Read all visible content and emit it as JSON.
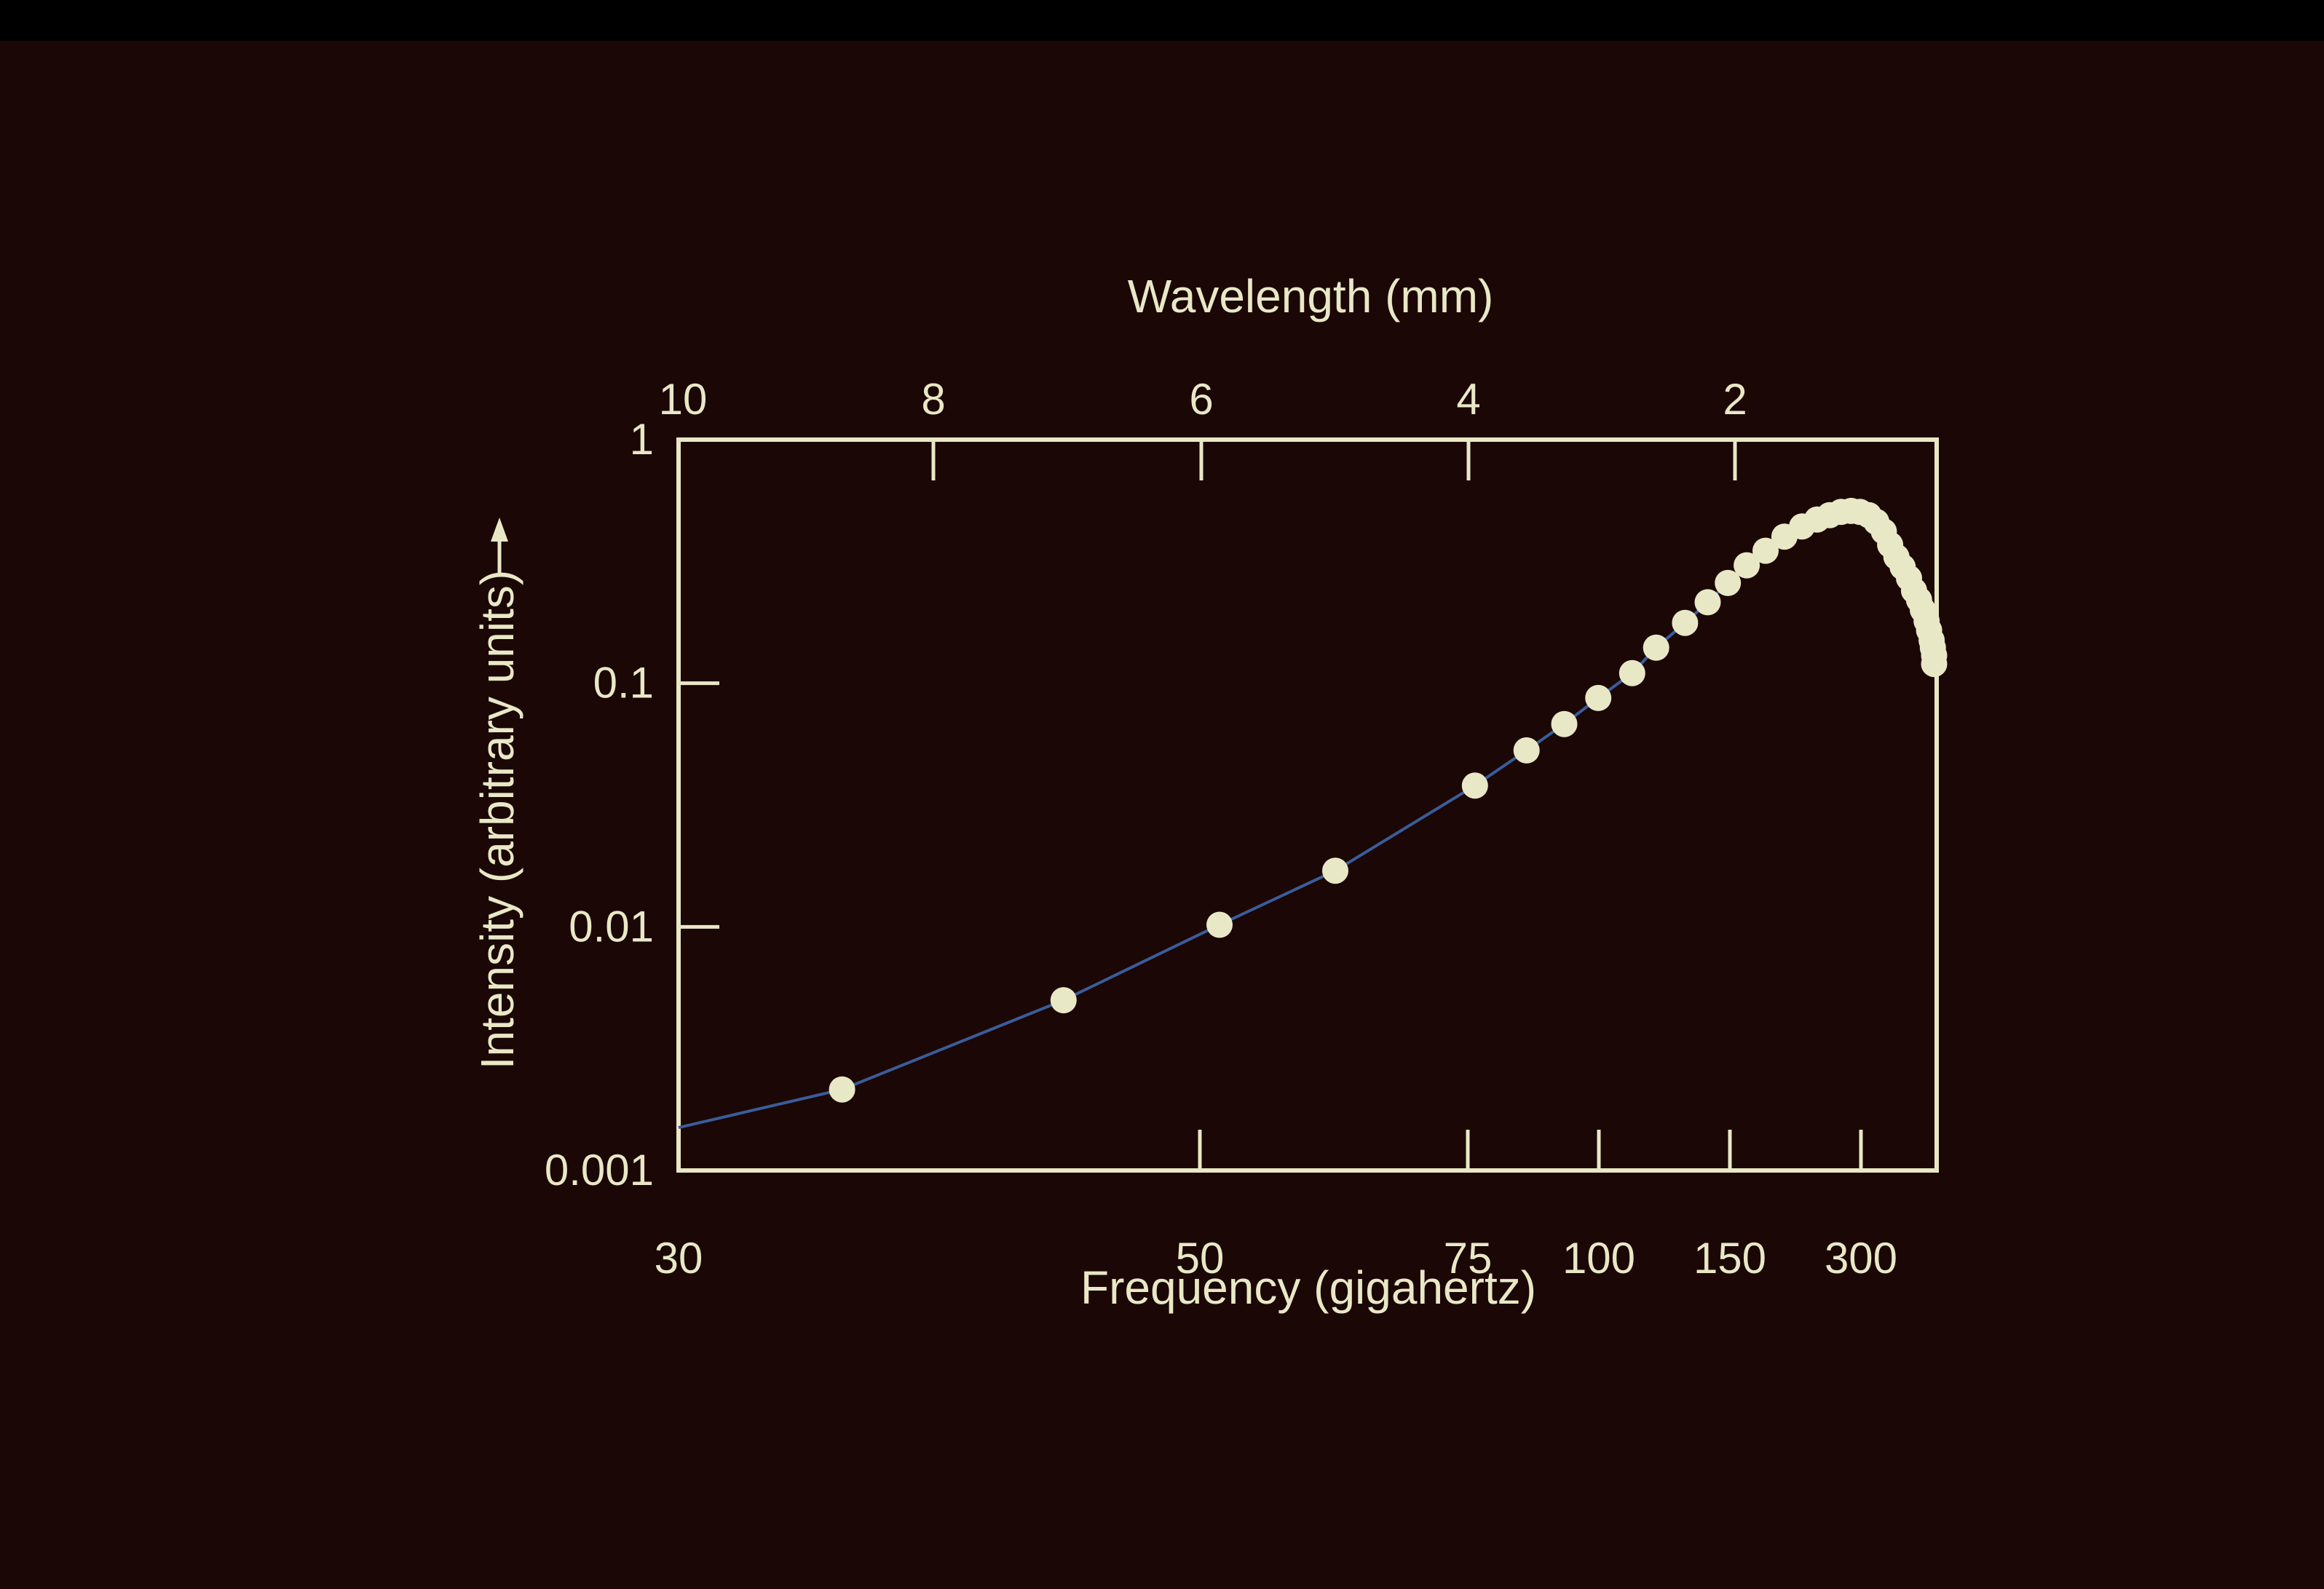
{
  "colors": {
    "background": "#1b0705",
    "frame": "#e9e8c6",
    "curve": "#3a5c9a",
    "points": "#e9e8c6"
  },
  "chart_data": {
    "type": "scatter",
    "title": "",
    "xlabel": "Frequency (gigahertz)",
    "x2label": "Wavelength (mm)",
    "ylabel": "Intensity (arbitrary units)",
    "y_arrow": true,
    "x_ticks": [
      "30",
      "50",
      "75",
      "100",
      "150",
      "300"
    ],
    "x2_ticks": [
      "10",
      "8",
      "6",
      "4",
      "2"
    ],
    "y_ticks": [
      "0.001",
      "0.01",
      "0.1",
      "1"
    ],
    "y_scale": "log",
    "ylim": [
      0.001,
      1
    ],
    "grid": false,
    "series": [
      {
        "kind": "points",
        "frac_x": [
          0.13,
          0.306,
          0.43,
          0.522,
          0.633,
          0.674,
          0.704,
          0.731,
          0.758,
          0.777,
          0.8,
          0.818,
          0.834,
          0.849,
          0.864,
          0.879,
          0.893,
          0.905,
          0.915,
          0.924,
          0.932,
          0.939,
          0.946,
          0.952,
          0.958,
          0.963,
          0.968,
          0.973,
          0.978,
          0.982,
          0.986,
          0.989,
          0.992,
          0.994,
          0.996,
          0.997,
          0.998,
          0.998
        ],
        "y": [
          0.00215,
          0.005,
          0.0102,
          0.017,
          0.038,
          0.053,
          0.068,
          0.087,
          0.11,
          0.14,
          0.177,
          0.215,
          0.258,
          0.305,
          0.35,
          0.4,
          0.44,
          0.47,
          0.49,
          0.505,
          0.51,
          0.505,
          0.49,
          0.46,
          0.42,
          0.37,
          0.33,
          0.3,
          0.27,
          0.24,
          0.22,
          0.2,
          0.18,
          0.165,
          0.15,
          0.14,
          0.13,
          0.12
        ]
      },
      {
        "kind": "line",
        "frac_x": [
          0.0,
          0.13,
          0.306,
          0.43,
          0.522,
          0.633,
          0.674,
          0.704,
          0.731,
          0.758,
          0.777,
          0.8,
          0.818,
          0.834,
          0.849,
          0.864,
          0.879,
          0.893,
          0.905,
          0.915,
          0.924,
          0.932,
          0.939,
          0.946,
          0.952,
          0.958,
          0.963,
          0.968,
          0.973,
          0.978,
          0.982,
          0.986,
          0.989,
          0.992,
          0.994,
          0.996,
          0.997,
          0.998
        ],
        "y": [
          0.0015,
          0.00215,
          0.005,
          0.0102,
          0.017,
          0.038,
          0.053,
          0.068,
          0.087,
          0.11,
          0.14,
          0.177,
          0.215,
          0.258,
          0.305,
          0.35,
          0.4,
          0.44,
          0.47,
          0.49,
          0.505,
          0.51,
          0.505,
          0.49,
          0.46,
          0.42,
          0.37,
          0.33,
          0.3,
          0.27,
          0.24,
          0.22,
          0.2,
          0.18,
          0.165,
          0.15,
          0.14,
          0.13
        ]
      }
    ]
  }
}
